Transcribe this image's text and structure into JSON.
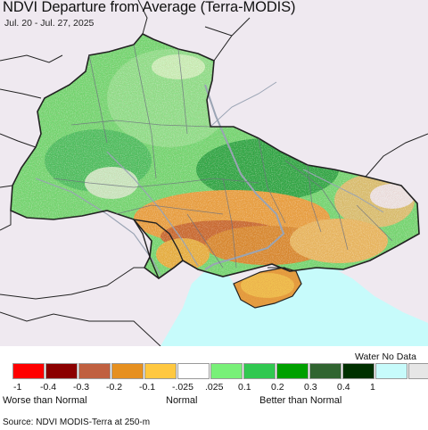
{
  "title": "NDVI Departure from Average (Terra-MODIS)",
  "date_range": "Jul. 20 - Jul. 27, 2025",
  "colors": {
    "background": "#efe9f0",
    "water": "#c7fbfb",
    "border": "#222222",
    "river": "#9aa4b4"
  },
  "legend": {
    "water_no_data_label": "Water No Data",
    "classes": [
      {
        "color": "#ff0000"
      },
      {
        "color": "#8b0000"
      },
      {
        "color": "#c06040"
      },
      {
        "color": "#e69020"
      },
      {
        "color": "#ffc840"
      },
      {
        "color": "#ffffff"
      },
      {
        "color": "#78f078"
      },
      {
        "color": "#30c850"
      },
      {
        "color": "#00a000"
      },
      {
        "color": "#306430"
      },
      {
        "color": "#003000"
      },
      {
        "color": "#c7fbfb"
      },
      {
        "color": "#e6e6e6"
      }
    ],
    "ticks": [
      "-1",
      "-0.4",
      "-0.3",
      "-0.2",
      "-0.1",
      "-.025",
      ".025",
      "0.1",
      "0.2",
      "0.3",
      "0.4",
      "1"
    ],
    "categories": [
      "Worse than Normal",
      "Normal",
      "Better than Normal"
    ]
  },
  "source": "Source: NDVI MODIS-Terra at 250-m"
}
